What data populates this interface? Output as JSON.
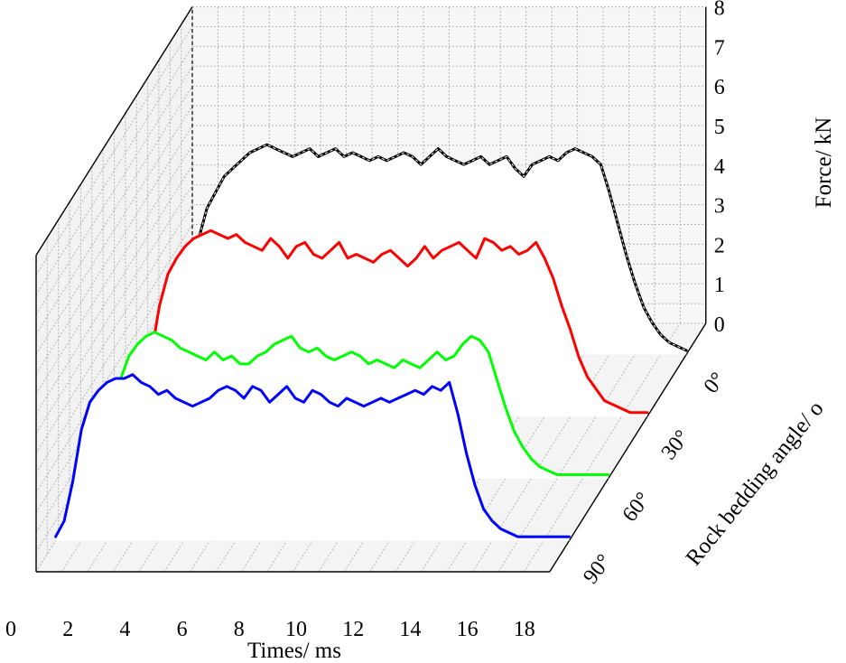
{
  "chart_data": {
    "type": "line",
    "projection": "3d-waterfall",
    "xlabel": "Times/ ms",
    "ylabel": "Force/ kN",
    "zlabel": "Rock bedding angle/ o",
    "xlim": [
      0,
      18
    ],
    "ylim": [
      0,
      8
    ],
    "x_ticks": [
      "0",
      "2",
      "4",
      "6",
      "8",
      "10",
      "12",
      "14",
      "16",
      "18"
    ],
    "y_ticks": [
      "0",
      "1",
      "2",
      "3",
      "4",
      "5",
      "6",
      "7",
      "8"
    ],
    "z_ticks": [
      "0°",
      "30°",
      "60°",
      "90°"
    ],
    "grid": true,
    "series": [
      {
        "name": "0°",
        "color": "#000000",
        "style": "solid-with-dashed-overlay",
        "x": [
          0.0,
          0.3,
          0.6,
          0.9,
          1.2,
          1.5,
          1.8,
          2.1,
          2.4,
          2.7,
          3.0,
          3.3,
          3.6,
          3.9,
          4.2,
          4.5,
          4.8,
          5.1,
          5.4,
          5.7,
          6.0,
          6.3,
          6.6,
          6.9,
          7.2,
          7.5,
          7.8,
          8.1,
          8.4,
          8.7,
          9.0,
          9.3,
          9.6,
          9.9,
          10.2,
          10.5,
          10.8,
          11.1,
          11.4,
          11.7,
          12.0,
          12.3,
          12.6,
          12.9,
          13.2,
          13.5,
          13.8,
          14.1,
          14.4,
          14.7,
          15.0,
          15.3,
          15.6,
          15.9,
          16.2,
          16.5,
          16.8,
          17.1,
          17.4,
          17.7,
          18.0
        ],
        "y": [
          0.1,
          0.5,
          1.6,
          2.9,
          3.7,
          4.1,
          4.5,
          4.7,
          4.9,
          5.1,
          5.2,
          5.3,
          5.2,
          5.1,
          5.0,
          5.1,
          5.2,
          5.0,
          5.1,
          5.2,
          5.0,
          5.1,
          5.0,
          4.9,
          5.0,
          4.9,
          5.0,
          5.1,
          5.0,
          4.8,
          5.0,
          5.2,
          5.0,
          4.9,
          4.8,
          4.9,
          5.0,
          4.8,
          4.9,
          5.0,
          4.7,
          4.5,
          4.8,
          4.9,
          5.0,
          4.9,
          5.1,
          5.2,
          5.1,
          5.0,
          4.8,
          4.1,
          3.3,
          2.5,
          1.8,
          1.2,
          0.8,
          0.5,
          0.3,
          0.2,
          0.1
        ]
      },
      {
        "name": "30°",
        "color": "#ff0000",
        "style": "solid",
        "x": [
          0.0,
          0.3,
          0.6,
          0.9,
          1.2,
          1.5,
          1.8,
          2.1,
          2.4,
          2.7,
          3.0,
          3.3,
          3.6,
          3.9,
          4.2,
          4.5,
          4.8,
          5.1,
          5.4,
          5.7,
          6.0,
          6.3,
          6.6,
          6.9,
          7.2,
          7.5,
          7.8,
          8.1,
          8.4,
          8.7,
          9.0,
          9.3,
          9.6,
          9.9,
          10.2,
          10.5,
          10.8,
          11.1,
          11.4,
          11.7,
          12.0,
          12.3,
          12.6,
          12.9,
          13.2,
          13.5,
          13.8,
          14.1,
          14.4,
          14.7,
          15.0,
          15.3,
          15.6,
          15.9,
          16.2,
          16.5,
          16.8,
          17.1,
          17.4,
          17.7,
          18.0
        ],
        "y": [
          0.1,
          0.5,
          1.5,
          2.8,
          3.6,
          4.0,
          4.3,
          4.5,
          4.6,
          4.7,
          4.6,
          4.5,
          4.6,
          4.4,
          4.3,
          4.2,
          4.5,
          4.3,
          4.0,
          4.3,
          4.4,
          4.1,
          4.0,
          4.2,
          4.4,
          4.0,
          4.1,
          4.0,
          3.9,
          4.1,
          4.2,
          4.0,
          3.8,
          4.0,
          4.3,
          4.0,
          4.2,
          4.3,
          4.4,
          4.2,
          4.0,
          4.5,
          4.4,
          4.2,
          4.3,
          4.1,
          4.2,
          4.4,
          4.0,
          3.5,
          2.8,
          2.2,
          1.5,
          1.0,
          0.7,
          0.4,
          0.3,
          0.2,
          0.1,
          0.1,
          0.1
        ]
      },
      {
        "name": "60°",
        "color": "#00ff00",
        "style": "solid",
        "x": [
          0.0,
          0.3,
          0.6,
          0.9,
          1.2,
          1.5,
          1.8,
          2.1,
          2.4,
          2.7,
          3.0,
          3.3,
          3.6,
          3.9,
          4.2,
          4.5,
          4.8,
          5.1,
          5.4,
          5.7,
          6.0,
          6.3,
          6.6,
          6.9,
          7.2,
          7.5,
          7.8,
          8.1,
          8.4,
          8.7,
          9.0,
          9.3,
          9.6,
          9.9,
          10.2,
          10.5,
          10.8,
          11.1,
          11.4,
          11.7,
          12.0,
          12.3,
          12.6,
          12.9,
          13.2,
          13.5,
          13.8,
          14.1,
          14.4,
          14.7,
          15.0,
          15.3,
          15.6,
          15.9,
          16.2,
          16.5,
          16.8,
          17.1,
          17.4,
          17.7,
          18.0
        ],
        "y": [
          0.1,
          0.5,
          1.4,
          2.5,
          3.1,
          3.4,
          3.6,
          3.7,
          3.6,
          3.5,
          3.3,
          3.2,
          3.1,
          3.0,
          3.2,
          3.0,
          3.1,
          2.9,
          2.9,
          3.1,
          3.2,
          3.4,
          3.5,
          3.6,
          3.3,
          3.2,
          3.3,
          3.1,
          3.0,
          3.1,
          3.2,
          3.1,
          2.9,
          3.0,
          2.9,
          2.8,
          3.0,
          2.9,
          2.8,
          3.0,
          3.2,
          3.0,
          3.1,
          3.4,
          3.6,
          3.5,
          3.2,
          2.5,
          1.8,
          1.2,
          0.8,
          0.5,
          0.3,
          0.2,
          0.1,
          0.1,
          0.1,
          0.1,
          0.1,
          0.1,
          0.1
        ]
      },
      {
        "name": "90°",
        "color": "#0000ff",
        "style": "solid",
        "x": [
          0.0,
          0.3,
          0.6,
          0.9,
          1.2,
          1.5,
          1.8,
          2.1,
          2.4,
          2.7,
          3.0,
          3.3,
          3.6,
          3.9,
          4.2,
          4.5,
          4.8,
          5.1,
          5.4,
          5.7,
          6.0,
          6.3,
          6.6,
          6.9,
          7.2,
          7.5,
          7.8,
          8.1,
          8.4,
          8.7,
          9.0,
          9.3,
          9.6,
          9.9,
          10.2,
          10.5,
          10.8,
          11.1,
          11.4,
          11.7,
          12.0,
          12.3,
          12.6,
          12.9,
          13.2,
          13.5,
          13.8,
          14.1,
          14.4,
          14.7,
          15.0,
          15.3,
          15.6,
          15.9,
          16.2,
          16.5,
          16.8,
          17.1,
          17.4,
          17.7,
          18.0
        ],
        "y": [
          0.1,
          0.5,
          1.5,
          2.8,
          3.5,
          3.8,
          4.0,
          4.1,
          4.1,
          4.2,
          4.0,
          3.9,
          3.7,
          3.8,
          3.6,
          3.5,
          3.4,
          3.5,
          3.6,
          3.8,
          3.9,
          3.8,
          3.6,
          3.9,
          3.8,
          3.5,
          3.7,
          3.9,
          3.6,
          3.5,
          3.8,
          3.7,
          3.5,
          3.4,
          3.6,
          3.5,
          3.4,
          3.5,
          3.6,
          3.5,
          3.6,
          3.7,
          3.8,
          3.7,
          3.9,
          3.8,
          4.0,
          3.2,
          2.2,
          1.4,
          0.8,
          0.5,
          0.3,
          0.2,
          0.1,
          0.1,
          0.1,
          0.1,
          0.1,
          0.1,
          0.1
        ]
      }
    ]
  }
}
